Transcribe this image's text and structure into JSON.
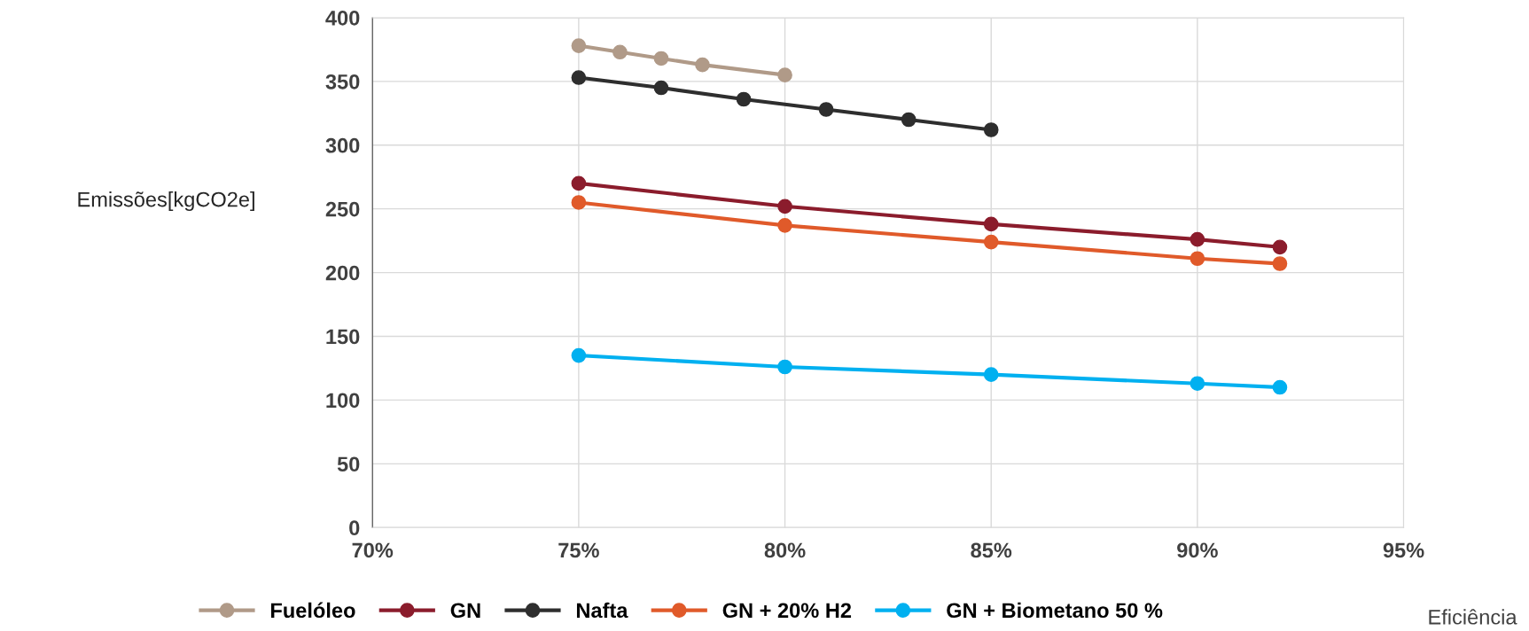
{
  "chart_data": {
    "type": "line",
    "xlabel": "Eficiência",
    "ylabel": "Emissões[kgCO2e]",
    "series": [
      {
        "name": "Fuelóleo",
        "color": "#b09a88",
        "x": [
          75,
          76,
          77,
          78,
          80
        ],
        "values": [
          378,
          373,
          368,
          363,
          355
        ]
      },
      {
        "name": "GN",
        "color": "#8b1c2c",
        "x": [
          75,
          80,
          85,
          90,
          92
        ],
        "values": [
          270,
          252,
          238,
          226,
          220
        ]
      },
      {
        "name": "Nafta",
        "color": "#2e2e2e",
        "x": [
          75,
          77,
          79,
          81,
          83,
          85
        ],
        "values": [
          353,
          345,
          336,
          328,
          320,
          312
        ]
      },
      {
        "name": "GN + 20% H2",
        "color": "#e05a2a",
        "x": [
          75,
          80,
          85,
          90,
          92
        ],
        "values": [
          255,
          237,
          224,
          211,
          207
        ]
      },
      {
        "name": "GN + Biometano 50 %",
        "color": "#00b0f0",
        "x": [
          75,
          80,
          85,
          90,
          92
        ],
        "values": [
          135,
          126,
          120,
          113,
          110
        ]
      }
    ],
    "xlim": [
      70,
      95
    ],
    "xticks": [
      {
        "value": 70,
        "label": "70%"
      },
      {
        "value": 75,
        "label": "75%"
      },
      {
        "value": 80,
        "label": "80%"
      },
      {
        "value": 85,
        "label": "85%"
      },
      {
        "value": 90,
        "label": "90%"
      },
      {
        "value": 95,
        "label": "95%"
      }
    ],
    "ylim": [
      0,
      400
    ],
    "yticks": [
      0,
      50,
      100,
      150,
      200,
      250,
      300,
      350,
      400
    ],
    "grid": true,
    "legend": "bottom",
    "marker": "circle",
    "line_style": "solid"
  }
}
